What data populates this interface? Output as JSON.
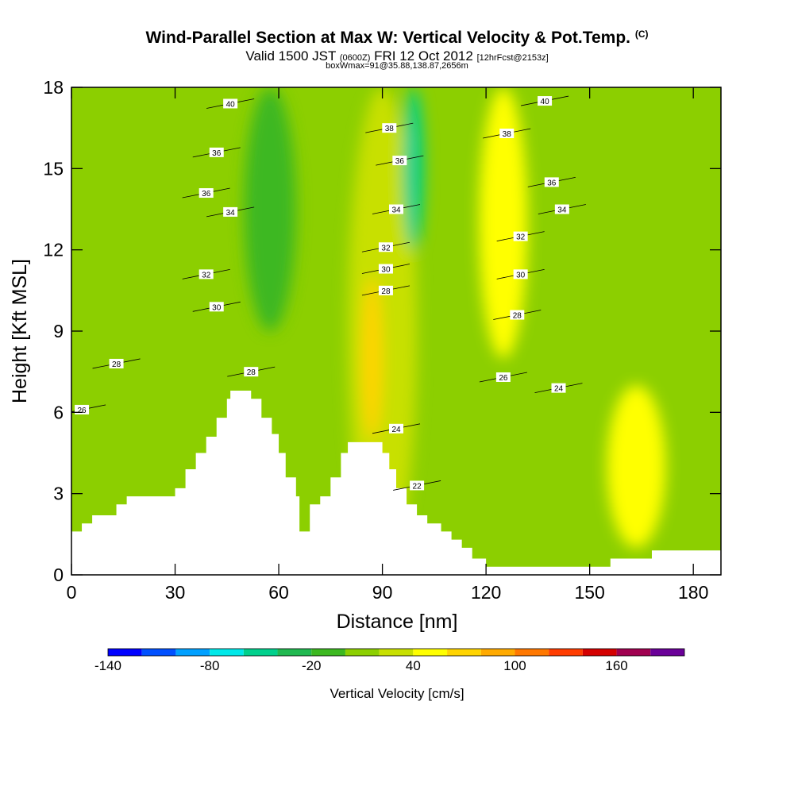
{
  "header": {
    "title": "Wind-Parallel Section at Max W: Vertical Velocity & Pot.Temp.",
    "copyright": "(C)",
    "valid_prefix": "Valid 1500 JST",
    "valid_utc": "(0600Z)",
    "valid_date": "FRI 12 Oct 2012",
    "forecast": "[12hrFcst@2153z]",
    "box_info": "boxWmax=91@35.88,138.87,2656m"
  },
  "chart_data": {
    "type": "contour",
    "xlabel": "Distance [nm]",
    "ylabel": "Height [Kft MSL]",
    "xlim": [
      0,
      188
    ],
    "ylim": [
      0,
      18
    ],
    "x_ticks": [
      0,
      30,
      60,
      90,
      120,
      150,
      180
    ],
    "y_ticks": [
      0,
      3,
      6,
      9,
      12,
      15,
      18
    ],
    "colorbar": {
      "label": "Vertical Velocity [cm/s]",
      "tick_values": [
        -140,
        -80,
        -20,
        40,
        100,
        160
      ],
      "levels": [
        -140,
        -120,
        -100,
        -80,
        -60,
        -40,
        -20,
        0,
        20,
        40,
        60,
        80,
        100,
        120,
        140,
        160,
        180
      ],
      "colors": [
        "#0000ff",
        "#0050ff",
        "#00a0ff",
        "#00e8e8",
        "#00d08c",
        "#20b850",
        "#3cb820",
        "#8ccf00",
        "#c8e000",
        "#ffff00",
        "#ffd400",
        "#ffaa00",
        "#ff7800",
        "#ff3c00",
        "#d40000",
        "#a00050",
        "#6a0098"
      ]
    },
    "terrain_kft": [
      [
        0,
        1.6
      ],
      [
        3,
        1.6
      ],
      [
        3,
        1.9
      ],
      [
        6,
        1.9
      ],
      [
        6,
        2.2
      ],
      [
        13,
        2.2
      ],
      [
        13,
        2.6
      ],
      [
        16,
        2.6
      ],
      [
        16,
        2.9
      ],
      [
        30,
        2.9
      ],
      [
        30,
        3.2
      ],
      [
        33,
        3.2
      ],
      [
        33,
        3.9
      ],
      [
        36,
        3.9
      ],
      [
        36,
        4.5
      ],
      [
        39,
        4.5
      ],
      [
        39,
        5.1
      ],
      [
        42,
        5.1
      ],
      [
        42,
        5.8
      ],
      [
        45,
        5.8
      ],
      [
        45,
        6.5
      ],
      [
        46,
        6.5
      ],
      [
        46,
        6.8
      ],
      [
        52,
        6.8
      ],
      [
        52,
        6.5
      ],
      [
        55,
        6.5
      ],
      [
        55,
        5.8
      ],
      [
        58,
        5.8
      ],
      [
        58,
        5.2
      ],
      [
        60,
        5.2
      ],
      [
        60,
        4.5
      ],
      [
        62,
        4.5
      ],
      [
        62,
        3.6
      ],
      [
        65,
        3.6
      ],
      [
        65,
        2.9
      ],
      [
        66,
        2.9
      ],
      [
        66,
        1.6
      ],
      [
        69,
        1.6
      ],
      [
        69,
        2.6
      ],
      [
        72,
        2.6
      ],
      [
        72,
        2.9
      ],
      [
        75,
        2.9
      ],
      [
        75,
        3.6
      ],
      [
        78,
        3.6
      ],
      [
        78,
        4.5
      ],
      [
        80,
        4.5
      ],
      [
        80,
        4.9
      ],
      [
        90,
        4.9
      ],
      [
        90,
        4.5
      ],
      [
        92,
        4.5
      ],
      [
        92,
        3.9
      ],
      [
        94,
        3.9
      ],
      [
        94,
        3.2
      ],
      [
        97,
        3.2
      ],
      [
        97,
        2.6
      ],
      [
        100,
        2.6
      ],
      [
        100,
        2.2
      ],
      [
        103,
        2.2
      ],
      [
        103,
        1.9
      ],
      [
        107,
        1.9
      ],
      [
        107,
        1.6
      ],
      [
        110,
        1.6
      ],
      [
        110,
        1.3
      ],
      [
        113,
        1.3
      ],
      [
        113,
        1.0
      ],
      [
        116,
        1.0
      ],
      [
        116,
        0.6
      ],
      [
        120,
        0.6
      ],
      [
        120,
        0.3
      ],
      [
        156,
        0.3
      ],
      [
        156,
        0.6
      ],
      [
        168,
        0.6
      ],
      [
        168,
        0.9
      ],
      [
        188,
        0.9
      ]
    ],
    "theta_contours": [
      {
        "label": "26",
        "x": 3,
        "y": 6.1
      },
      {
        "label": "28",
        "x": 13,
        "y": 7.8
      },
      {
        "label": "30",
        "x": 42,
        "y": 9.9
      },
      {
        "label": "32",
        "x": 39,
        "y": 11.1
      },
      {
        "label": "34",
        "x": 46,
        "y": 13.4
      },
      {
        "label": "36",
        "x": 39,
        "y": 14.1
      },
      {
        "label": "36",
        "x": 42,
        "y": 15.6
      },
      {
        "label": "40",
        "x": 46,
        "y": 17.4
      },
      {
        "label": "28",
        "x": 52,
        "y": 7.5
      },
      {
        "label": "28",
        "x": 91,
        "y": 10.5
      },
      {
        "label": "30",
        "x": 91,
        "y": 11.3
      },
      {
        "label": "32",
        "x": 91,
        "y": 12.1
      },
      {
        "label": "34",
        "x": 94,
        "y": 13.5
      },
      {
        "label": "36",
        "x": 95,
        "y": 15.3
      },
      {
        "label": "38",
        "x": 92,
        "y": 16.5
      },
      {
        "label": "24",
        "x": 94,
        "y": 5.4
      },
      {
        "label": "22",
        "x": 100,
        "y": 3.3
      },
      {
        "label": "38",
        "x": 126,
        "y": 16.3
      },
      {
        "label": "40",
        "x": 137,
        "y": 17.5
      },
      {
        "label": "36",
        "x": 139,
        "y": 14.5
      },
      {
        "label": "34",
        "x": 142,
        "y": 13.5
      },
      {
        "label": "32",
        "x": 130,
        "y": 12.5
      },
      {
        "label": "30",
        "x": 130,
        "y": 11.1
      },
      {
        "label": "28",
        "x": 129,
        "y": 9.6
      },
      {
        "label": "26",
        "x": 125,
        "y": 7.3
      },
      {
        "label": "24",
        "x": 141,
        "y": 6.9
      }
    ],
    "w_features": [
      {
        "value": 20,
        "x": [
          80,
          100
        ],
        "y": [
          0,
          18
        ]
      },
      {
        "value": 60,
        "x": [
          84,
          90
        ],
        "y": [
          5,
          11
        ]
      },
      {
        "value": -60,
        "x": [
          96,
          102
        ],
        "y": [
          12,
          18
        ]
      },
      {
        "value": 40,
        "x": [
          118,
          132
        ],
        "y": [
          8,
          18
        ]
      },
      {
        "value": 40,
        "x": [
          155,
          172
        ],
        "y": [
          1,
          7
        ]
      },
      {
        "value": -20,
        "x": [
          50,
          65
        ],
        "y": [
          9,
          18
        ]
      }
    ]
  }
}
